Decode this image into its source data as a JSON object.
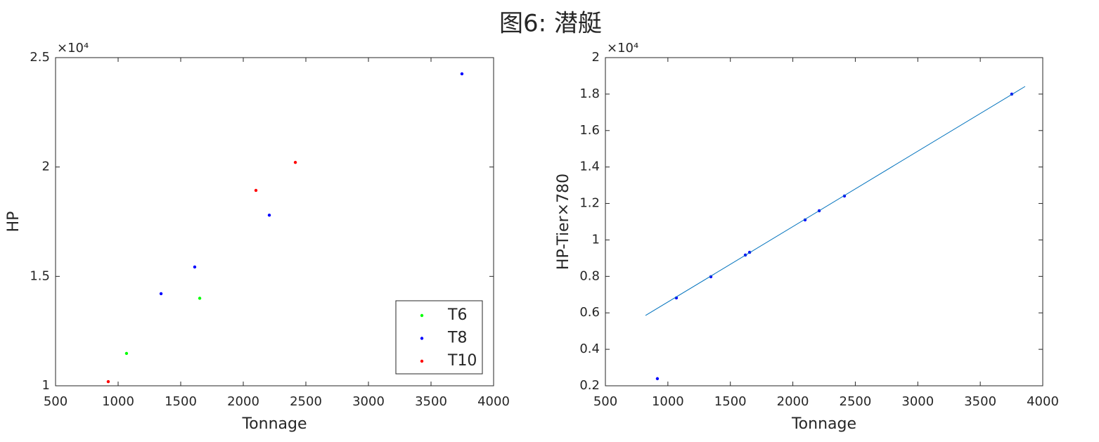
{
  "title": "图6: 潜艇",
  "chart_data": [
    {
      "type": "scatter",
      "xlabel": "Tonnage",
      "ylabel": "HP",
      "y_multiplier": "×10⁴",
      "xlim": [
        500,
        4000
      ],
      "xticks": [
        500,
        1000,
        1500,
        2000,
        2500,
        3000,
        3500,
        4000
      ],
      "ylim": [
        10000,
        25000
      ],
      "yticks": [
        {
          "value": 10000,
          "label": "1"
        },
        {
          "value": 15000,
          "label": "1.5"
        },
        {
          "value": 20000,
          "label": "2"
        },
        {
          "value": 25000,
          "label": "2.5"
        }
      ],
      "legend": "southeast",
      "series": [
        {
          "name": "T6",
          "color": "#00ff00",
          "x": [
            1067,
            1652
          ],
          "values": [
            11480,
            14000
          ]
        },
        {
          "name": "T8",
          "color": "#0000ff",
          "x": [
            1343,
            1612,
            2208,
            3747
          ],
          "values": [
            14210,
            15430,
            17800,
            24260
          ]
        },
        {
          "name": "T10",
          "color": "#ff0000",
          "x": [
            921,
            2101,
            2416
          ],
          "values": [
            10190,
            18930,
            20210
          ]
        }
      ]
    },
    {
      "type": "scatter",
      "xlabel": "Tonnage",
      "ylabel": "HP-Tier×780",
      "y_multiplier": "×10⁴",
      "xlim": [
        500,
        4000
      ],
      "xticks": [
        500,
        1000,
        1500,
        2000,
        2500,
        3000,
        3500,
        4000
      ],
      "ylim": [
        2000,
        20000
      ],
      "yticks": [
        {
          "value": 2000,
          "label": "0.2"
        },
        {
          "value": 4000,
          "label": "0.4"
        },
        {
          "value": 6000,
          "label": "0.6"
        },
        {
          "value": 8000,
          "label": "0.8"
        },
        {
          "value": 10000,
          "label": "1"
        },
        {
          "value": 12000,
          "label": "1.2"
        },
        {
          "value": 14000,
          "label": "1.4"
        },
        {
          "value": 16000,
          "label": "1.6"
        },
        {
          "value": 18000,
          "label": "1.8"
        },
        {
          "value": 20000,
          "label": "2"
        }
      ],
      "series": [
        {
          "color": "#0000ff",
          "x": [
            916,
            1068,
            1344,
            1620,
            1654,
            2098,
            2211,
            2413,
            3752
          ],
          "values": [
            2390,
            6820,
            7980,
            9170,
            9320,
            11100,
            11600,
            12410,
            18000
          ]
        },
        {
          "color": "#0072bd",
          "mode": "line",
          "x": [
            821,
            3859
          ],
          "values": [
            5855,
            18420
          ]
        }
      ]
    }
  ]
}
